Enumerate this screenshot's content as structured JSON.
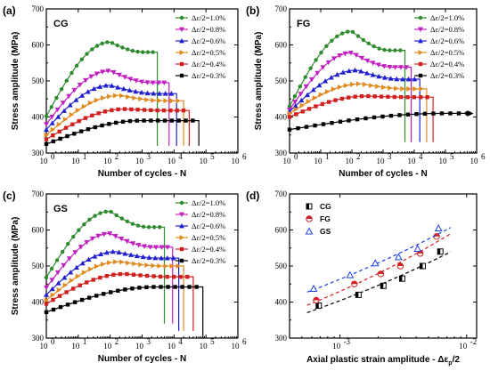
{
  "colors": {
    "1.0": "#2e8b2e",
    "0.8": "#c020c0",
    "0.6": "#2020d0",
    "0.5": "#e08a20",
    "0.4": "#d02020",
    "0.3": "#000000",
    "CG": "#000000",
    "FG": "#d02020",
    "GS": "#2040e0"
  },
  "chart_data": [
    {
      "panel": "(a)",
      "sample_label": "CG",
      "type": "line",
      "xlabel": "Number of cycles - N",
      "ylabel": "Stress amplitude (MPa)",
      "xscale": "log",
      "xlim": [
        1,
        1000000
      ],
      "ylim": [
        300,
        700
      ],
      "yticks": [
        300,
        400,
        500,
        600,
        700
      ],
      "legend": "top-right",
      "series": [
        {
          "name": "Δε/2=1.0%",
          "key": "1.0",
          "marker": "circle",
          "peak_N": 100,
          "peak": 608,
          "start": 402,
          "plateau": 580,
          "end_N": 3000,
          "final": 320
        },
        {
          "name": "Δε/2=0.8%",
          "key": "0.8",
          "marker": "tri-down",
          "peak_N": 100,
          "peak": 528,
          "start": 380,
          "plateau": 495,
          "end_N": 7000,
          "final": 320
        },
        {
          "name": "Δε/2=0.6%",
          "key": "0.6",
          "marker": "tri-up",
          "peak_N": 100,
          "peak": 488,
          "start": 365,
          "plateau": 465,
          "end_N": 12000,
          "final": 320
        },
        {
          "name": "Δε/2=0.5%",
          "key": "0.5",
          "marker": "tri-right",
          "peak_N": 200,
          "peak": 460,
          "start": 350,
          "plateau": 445,
          "end_N": 20000,
          "final": 320
        },
        {
          "name": "Δε/2=0.4%",
          "key": "0.4",
          "marker": "square-red",
          "peak_N": 300,
          "peak": 422,
          "start": 338,
          "plateau": 418,
          "end_N": 30000,
          "final": 320
        },
        {
          "name": "Δε/2=0.3%",
          "key": "0.3",
          "marker": "square",
          "peak_N": 1000,
          "peak": 390,
          "start": 325,
          "plateau": 390,
          "end_N": 60000,
          "final": 320
        }
      ]
    },
    {
      "panel": "(b)",
      "sample_label": "FG",
      "type": "line",
      "xlabel": "Number of cycles - N",
      "ylabel": "Stress amplitude (MPa)",
      "xscale": "log",
      "xlim": [
        1,
        1000000
      ],
      "ylim": [
        300,
        700
      ],
      "yticks": [
        300,
        400,
        500,
        600,
        700
      ],
      "legend": "top-right",
      "series": [
        {
          "name": "Δε/2=1.0%",
          "key": "1.0",
          "marker": "circle",
          "peak_N": 100,
          "peak": 638,
          "start": 430,
          "plateau": 585,
          "end_N": 5000,
          "final": 330
        },
        {
          "name": "Δε/2=0.8%",
          "key": "0.8",
          "marker": "tri-down",
          "peak_N": 100,
          "peak": 578,
          "start": 420,
          "plateau": 538,
          "end_N": 8000,
          "final": 330
        },
        {
          "name": "Δε/2=0.6%",
          "key": "0.6",
          "marker": "tri-up",
          "peak_N": 150,
          "peak": 530,
          "start": 415,
          "plateau": 505,
          "end_N": 15000,
          "final": 330
        },
        {
          "name": "Δε/2=0.5%",
          "key": "0.5",
          "marker": "tri-right",
          "peak_N": 200,
          "peak": 492,
          "start": 410,
          "plateau": 478,
          "end_N": 25000,
          "final": 330
        },
        {
          "name": "Δε/2=0.4%",
          "key": "0.4",
          "marker": "square-red",
          "peak_N": 300,
          "peak": 458,
          "start": 400,
          "plateau": 455,
          "end_N": 40000,
          "final": 330
        },
        {
          "name": "Δε/2=0.3%",
          "key": "0.3",
          "marker": "square",
          "peak_N": 100000,
          "peak": 410,
          "start": 365,
          "plateau": 410,
          "end_N": 500000,
          "final": 410,
          "runout": true
        }
      ]
    },
    {
      "panel": "(c)",
      "sample_label": "GS",
      "type": "line",
      "xlabel": "Number of cycles - N",
      "ylabel": "Stress amplitude (MPa)",
      "xscale": "log",
      "xlim": [
        1,
        1000000
      ],
      "ylim": [
        300,
        700
      ],
      "yticks": [
        300,
        400,
        500,
        600,
        700
      ],
      "legend": "top-right",
      "series": [
        {
          "name": "Δε/2=1.0%",
          "key": "1.0",
          "marker": "circle",
          "peak_N": 100,
          "peak": 652,
          "start": 468,
          "plateau": 608,
          "end_N": 5000,
          "final": 340
        },
        {
          "name": "Δε/2=0.8%",
          "key": "0.8",
          "marker": "tri-down",
          "peak_N": 100,
          "peak": 590,
          "start": 440,
          "plateau": 552,
          "end_N": 9000,
          "final": 340
        },
        {
          "name": "Δε/2=0.6%",
          "key": "0.6",
          "marker": "tri-up",
          "peak_N": 150,
          "peak": 540,
          "start": 420,
          "plateau": 522,
          "end_N": 14000,
          "final": 320
        },
        {
          "name": "Δε/2=0.5%",
          "key": "0.5",
          "marker": "tri-right",
          "peak_N": 200,
          "peak": 512,
          "start": 405,
          "plateau": 500,
          "end_N": 20000,
          "final": 320
        },
        {
          "name": "Δε/2=0.4%",
          "key": "0.4",
          "marker": "square-red",
          "peak_N": 300,
          "peak": 478,
          "start": 395,
          "plateau": 470,
          "end_N": 40000,
          "final": 320
        },
        {
          "name": "Δε/2=0.3%",
          "key": "0.3",
          "marker": "square",
          "peak_N": 3000,
          "peak": 442,
          "start": 372,
          "plateau": 442,
          "end_N": 80000,
          "final": 300
        }
      ]
    },
    {
      "panel": "(d)",
      "type": "scatter",
      "xlabel": "Axial plastic strain amplitude - Δε",
      "xlabel_sub": "p",
      "xlabel_tail": "/2",
      "xscale": "log",
      "xlim": [
        0.0004,
        0.012
      ],
      "ylim": [
        300,
        700
      ],
      "yticks": [
        300,
        400,
        500,
        600,
        700
      ],
      "legend": "top-left",
      "series": [
        {
          "name": "CG",
          "key": "CG",
          "marker": "square",
          "x": [
            0.00068,
            0.0014,
            0.0022,
            0.0031,
            0.0045,
            0.0062
          ],
          "y": [
            390,
            420,
            445,
            465,
            500,
            540
          ]
        },
        {
          "name": "FG",
          "key": "FG",
          "marker": "half-circle",
          "x": [
            0.00065,
            0.0013,
            0.0021,
            0.003,
            0.0043,
            0.0058
          ],
          "y": [
            405,
            450,
            478,
            500,
            535,
            582
          ]
        },
        {
          "name": "GS",
          "key": "GS",
          "marker": "tri-up",
          "x": [
            0.00062,
            0.0012,
            0.0019,
            0.0029,
            0.0041,
            0.006
          ],
          "y": [
            437,
            475,
            508,
            525,
            548,
            605
          ]
        }
      ]
    }
  ],
  "xticks_log_cycles": [
    "10",
    "10",
    "10",
    "10",
    "10",
    "10",
    "10"
  ],
  "xticks_log_cycles_exp": [
    "0",
    "1",
    "2",
    "3",
    "4",
    "5",
    "6"
  ],
  "xticks_strain": [
    "10",
    "10"
  ],
  "xticks_strain_exp": [
    "-3",
    "-2"
  ]
}
